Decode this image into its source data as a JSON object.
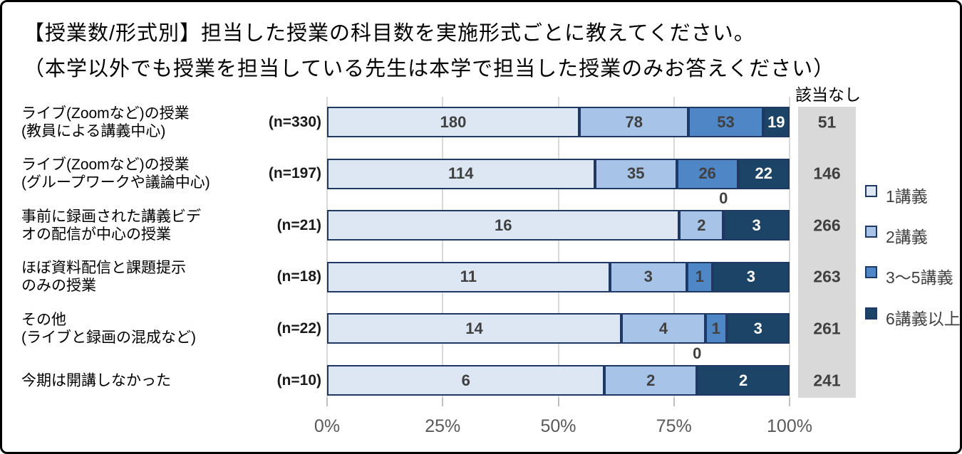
{
  "title": {
    "line1": "【授業数/形式別】担当した授業の科目数を実施形式ごとに教えてください。",
    "line2": "（本学以外でも授業を担当している先生は本学で担当した授業のみお答えください）"
  },
  "chart_data": {
    "type": "bar",
    "orientation": "horizontal",
    "stacked": true,
    "unit": "科目数(件数)",
    "x_axis": {
      "ticks": [
        "0%",
        "25%",
        "50%",
        "75%",
        "100%"
      ],
      "range": [
        0,
        1
      ],
      "grid": true
    },
    "series": [
      {
        "name": "1講義",
        "color": "#dce7f3",
        "label_color": "#404040",
        "values": [
          180,
          114,
          16,
          11,
          14,
          6
        ]
      },
      {
        "name": "2講義",
        "color": "#a7c4e8",
        "label_color": "#404040",
        "values": [
          78,
          35,
          2,
          3,
          4,
          2
        ]
      },
      {
        "name": "3〜5講義",
        "color": "#4e86c6",
        "label_color": "#404040",
        "values": [
          53,
          26,
          0,
          1,
          1,
          0
        ]
      },
      {
        "name": "6講義以上",
        "color": "#1c4467",
        "label_color": "#ffffff",
        "values": [
          19,
          22,
          3,
          3,
          3,
          2
        ]
      }
    ],
    "categories": [
      {
        "label_lines": [
          "ライブ(Zoomなど)の授業",
          "(教員による講義中心)"
        ],
        "n_label": "(n=330)"
      },
      {
        "label_lines": [
          "ライブ(Zoomなど)の授業",
          "(グループワークや議論中心)"
        ],
        "n_label": "(n=197)"
      },
      {
        "label_lines": [
          "事前に録画された講義ビデ",
          "オの配信が中心の授業"
        ],
        "n_label": "(n=21)"
      },
      {
        "label_lines": [
          "ほぼ資料配信と課題提示",
          "のみの授業"
        ],
        "n_label": "(n=18)"
      },
      {
        "label_lines": [
          "その他",
          "(ライブと録画の混成など)"
        ],
        "n_label": "(n=22)"
      },
      {
        "label_lines": [
          "今期は開講しなかった"
        ],
        "n_label": "(n=10)"
      }
    ],
    "na_column": {
      "header": "該当なし",
      "values": [
        51,
        146,
        266,
        263,
        261,
        241
      ],
      "background": "#d9d9d9"
    },
    "legend": {
      "position": "right",
      "entries": [
        "1講義",
        "2講義",
        "3〜5講義",
        "6講義以上"
      ]
    },
    "styles": {
      "segment_border_color": "#1f3864",
      "gridline_color": "#d9d9d9",
      "axis_label_color": "#595959",
      "value_label_color": "#404040",
      "frame_border_color": "#000000"
    }
  }
}
